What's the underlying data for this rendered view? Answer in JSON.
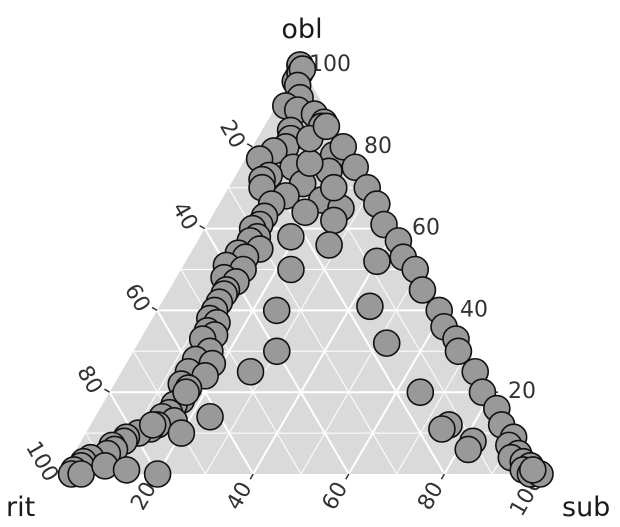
{
  "chart_data": {
    "type": "scatter",
    "subtype": "ternary",
    "title": "",
    "vertex_labels": {
      "top": "obl",
      "left": "rit",
      "right": "sub"
    },
    "tick_labels": [
      "20",
      "40",
      "60",
      "80",
      "100"
    ],
    "grid": true,
    "colors": {
      "panel": "#dadada",
      "grid": "#ffffff",
      "point_fill": "#999999",
      "point_stroke": "#111111"
    },
    "axis_range": [
      0,
      100
    ],
    "points": [
      [
        100,
        0,
        0
      ],
      [
        100,
        0,
        0
      ],
      [
        97,
        2,
        1
      ],
      [
        96,
        3,
        1
      ],
      [
        98,
        1,
        1
      ],
      [
        99,
        0,
        1
      ],
      [
        95,
        3,
        2
      ],
      [
        92,
        4,
        4
      ],
      [
        90,
        8,
        2
      ],
      [
        89,
        6,
        5
      ],
      [
        88,
        3,
        9
      ],
      [
        86,
        2,
        12
      ],
      [
        85,
        3,
        12
      ],
      [
        84,
        10,
        6
      ],
      [
        82,
        11,
        7
      ],
      [
        80,
        13,
        7
      ],
      [
        79,
        16,
        5
      ],
      [
        78,
        4,
        18
      ],
      [
        77,
        20,
        3
      ],
      [
        75,
        14,
        11
      ],
      [
        74,
        7,
        19
      ],
      [
        73,
        20,
        7
      ],
      [
        72,
        22,
        6
      ],
      [
        71,
        14,
        15
      ],
      [
        70,
        23,
        7
      ],
      [
        68,
        19,
        13
      ],
      [
        67,
        12,
        21
      ],
      [
        66,
        23,
        11
      ],
      [
        65,
        9,
        26
      ],
      [
        63,
        26,
        11
      ],
      [
        62,
        12,
        26
      ],
      [
        61,
        28,
        11
      ],
      [
        60,
        30,
        10
      ],
      [
        58,
        30,
        12
      ],
      [
        57,
        32,
        11
      ],
      [
        56,
        16,
        28
      ],
      [
        55,
        31,
        14
      ],
      [
        54,
        36,
        10
      ],
      [
        53,
        35,
        12
      ],
      [
        52,
        8,
        40
      ],
      [
        51,
        40,
        9
      ],
      [
        50,
        37,
        13
      ],
      [
        48,
        42,
        10
      ],
      [
        47,
        40,
        13
      ],
      [
        45,
        43,
        12
      ],
      [
        44,
        44,
        12
      ],
      [
        42,
        46,
        12
      ],
      [
        41,
        15,
        44
      ],
      [
        40,
        48,
        12
      ],
      [
        38,
        50,
        12
      ],
      [
        37,
        49,
        14
      ],
      [
        35,
        52,
        13
      ],
      [
        34,
        51,
        15
      ],
      [
        33,
        54,
        13
      ],
      [
        32,
        16,
        52
      ],
      [
        30,
        54,
        16
      ],
      [
        28,
        58,
        14
      ],
      [
        27,
        55,
        18
      ],
      [
        25,
        61,
        14
      ],
      [
        24,
        58,
        18
      ],
      [
        22,
        64,
        14
      ],
      [
        21,
        63,
        16
      ],
      [
        20,
        15,
        65
      ],
      [
        18,
        66,
        16
      ],
      [
        17,
        68,
        15
      ],
      [
        15,
        70,
        15
      ],
      [
        14,
        72,
        14
      ],
      [
        13,
        70,
        17
      ],
      [
        12,
        74,
        14
      ],
      [
        11,
        76,
        13
      ],
      [
        10,
        79,
        11
      ],
      [
        9,
        82,
        9
      ],
      [
        8,
        83,
        9
      ],
      [
        7,
        86,
        7
      ],
      [
        6,
        86,
        8
      ],
      [
        5,
        88,
        7
      ],
      [
        4,
        92,
        4
      ],
      [
        3,
        94,
        3
      ],
      [
        2,
        95,
        3
      ],
      [
        1,
        97,
        2
      ],
      [
        0,
        98,
        2
      ],
      [
        0,
        96,
        4
      ],
      [
        2,
        90,
        8
      ],
      [
        1,
        86,
        13
      ],
      [
        10,
        70,
        20
      ],
      [
        12,
        75,
        13
      ],
      [
        0,
        80,
        20
      ],
      [
        14,
        62,
        24
      ],
      [
        20,
        64,
        16
      ],
      [
        25,
        48,
        27
      ],
      [
        30,
        40,
        30
      ],
      [
        40,
        35,
        25
      ],
      [
        50,
        27,
        23
      ],
      [
        58,
        23,
        19
      ],
      [
        64,
        17,
        19
      ],
      [
        70,
        8,
        22
      ],
      [
        76,
        10,
        14
      ],
      [
        82,
        7,
        11
      ],
      [
        85,
        2,
        13
      ],
      [
        80,
        1,
        19
      ],
      [
        75,
        1,
        24
      ],
      [
        70,
        1,
        29
      ],
      [
        66,
        1,
        33
      ],
      [
        61,
        2,
        37
      ],
      [
        57,
        1,
        42
      ],
      [
        53,
        2,
        45
      ],
      [
        50,
        1,
        49
      ],
      [
        45,
        2,
        53
      ],
      [
        40,
        1,
        59
      ],
      [
        36,
        2,
        62
      ],
      [
        33,
        1,
        66
      ],
      [
        30,
        2,
        68
      ],
      [
        25,
        1,
        74
      ],
      [
        20,
        2,
        78
      ],
      [
        16,
        1,
        83
      ],
      [
        12,
        2,
        86
      ],
      [
        9,
        1,
        90
      ],
      [
        7,
        3,
        90
      ],
      [
        5,
        2,
        93
      ],
      [
        4,
        4,
        92
      ],
      [
        3,
        2,
        95
      ],
      [
        2,
        1,
        97
      ],
      [
        1,
        3,
        96
      ],
      [
        0,
        2,
        98
      ],
      [
        0,
        0,
        100
      ],
      [
        1,
        1,
        98
      ],
      [
        12,
        13,
        75
      ],
      [
        11,
        15,
        74
      ],
      [
        8,
        10,
        82
      ],
      [
        6,
        12,
        82
      ]
    ]
  }
}
